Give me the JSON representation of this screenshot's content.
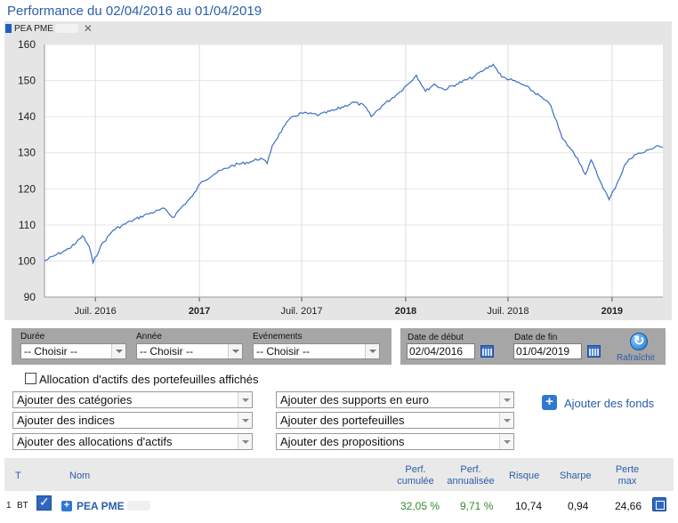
{
  "title": "Performance du 02/04/2016 au 01/04/2019",
  "series_tab": {
    "name": "PEA PME",
    "swatch_color": "#1f5fbf",
    "close_icon": "close-icon"
  },
  "chart_data": {
    "type": "line",
    "ylim": [
      90,
      160
    ],
    "yticks": [
      "90",
      "100",
      "110",
      "120",
      "130",
      "140",
      "150",
      "160"
    ],
    "xticks": [
      {
        "label": "Juil. 2016",
        "bold": false
      },
      {
        "label": "2017",
        "bold": true
      },
      {
        "label": "Juil. 2017",
        "bold": false
      },
      {
        "label": "2018",
        "bold": true
      },
      {
        "label": "Juil. 2018",
        "bold": false
      },
      {
        "label": "2019",
        "bold": true
      }
    ],
    "x_start": "2016-04-02",
    "x_end": "2019-04-01",
    "series": [
      {
        "color": "#3b6fc4",
        "points": [
          [
            "2016-04-02",
            100.0
          ],
          [
            "2016-04-20",
            101.5
          ],
          [
            "2016-05-10",
            103.0
          ],
          [
            "2016-05-25",
            104.5
          ],
          [
            "2016-06-08",
            107.0
          ],
          [
            "2016-06-20",
            104.0
          ],
          [
            "2016-06-27",
            99.5
          ],
          [
            "2016-07-10",
            104.0
          ],
          [
            "2016-08-01",
            108.5
          ],
          [
            "2016-09-01",
            111.0
          ],
          [
            "2016-10-01",
            113.0
          ],
          [
            "2016-11-01",
            114.5
          ],
          [
            "2016-11-15",
            112.0
          ],
          [
            "2016-12-01",
            115.0
          ],
          [
            "2016-12-20",
            118.0
          ],
          [
            "2017-01-05",
            122.0
          ],
          [
            "2017-02-01",
            124.5
          ],
          [
            "2017-03-01",
            126.5
          ],
          [
            "2017-04-01",
            127.5
          ],
          [
            "2017-04-20",
            128.5
          ],
          [
            "2017-05-01",
            127.0
          ],
          [
            "2017-05-10",
            132.0
          ],
          [
            "2017-06-01",
            137.5
          ],
          [
            "2017-06-15",
            140.0
          ],
          [
            "2017-07-01",
            141.0
          ],
          [
            "2017-08-01",
            140.5
          ],
          [
            "2017-09-01",
            142.0
          ],
          [
            "2017-10-01",
            144.0
          ],
          [
            "2017-10-20",
            143.0
          ],
          [
            "2017-11-01",
            140.0
          ],
          [
            "2017-11-20",
            143.0
          ],
          [
            "2017-12-15",
            146.0
          ],
          [
            "2018-01-05",
            149.0
          ],
          [
            "2018-01-20",
            151.5
          ],
          [
            "2018-02-05",
            147.0
          ],
          [
            "2018-02-20",
            149.0
          ],
          [
            "2018-03-10",
            147.5
          ],
          [
            "2018-04-01",
            149.0
          ],
          [
            "2018-05-01",
            151.0
          ],
          [
            "2018-05-20",
            153.0
          ],
          [
            "2018-06-05",
            154.5
          ],
          [
            "2018-06-20",
            151.0
          ],
          [
            "2018-07-10",
            150.0
          ],
          [
            "2018-08-01",
            148.5
          ],
          [
            "2018-09-01",
            145.0
          ],
          [
            "2018-09-15",
            143.0
          ],
          [
            "2018-10-05",
            134.0
          ],
          [
            "2018-10-20",
            131.0
          ],
          [
            "2018-11-01",
            128.5
          ],
          [
            "2018-11-15",
            124.0
          ],
          [
            "2018-11-25",
            128.0
          ],
          [
            "2018-12-10",
            122.5
          ],
          [
            "2018-12-27",
            117.0
          ],
          [
            "2019-01-10",
            121.5
          ],
          [
            "2019-01-25",
            127.0
          ],
          [
            "2019-02-10",
            129.5
          ],
          [
            "2019-02-25",
            130.0
          ],
          [
            "2019-03-10",
            131.0
          ],
          [
            "2019-03-22",
            132.0
          ],
          [
            "2019-04-01",
            131.5
          ]
        ]
      }
    ]
  },
  "filters": {
    "duree": {
      "label": "Durée",
      "value": "-- Choisir --"
    },
    "annee": {
      "label": "Année",
      "value": "-- Choisir --"
    },
    "evenements": {
      "label": "Evénements",
      "value": "-- Choisir --"
    },
    "date_debut": {
      "label": "Date de début",
      "value": "02/04/2016"
    },
    "date_fin": {
      "label": "Date de fin",
      "value": "01/04/2019"
    },
    "refresh_label": "Rafraîchir"
  },
  "allocation_checkbox": {
    "label": "Allocation d'actifs des portefeuilles affichés",
    "checked": false
  },
  "add_selects": {
    "categories": "Ajouter des catégories",
    "supports_euro": "Ajouter des supports en euro",
    "indices": "Ajouter des indices",
    "portefeuilles": "Ajouter des portefeuilles",
    "allocations": "Ajouter des allocations d'actifs",
    "propositions": "Ajouter des propositions"
  },
  "add_funds_label": "Ajouter des fonds",
  "table": {
    "headers": {
      "t": "T",
      "nom": "Nom",
      "perf_cumulee": [
        "Perf.",
        "cumulée"
      ],
      "perf_annualisee": [
        "Perf.",
        "annualisée"
      ],
      "risque": "Risque",
      "sharpe": "Sharpe",
      "perte_max": [
        "Perte",
        "max"
      ]
    },
    "rows": [
      {
        "index": "1",
        "type": "BT",
        "name": "PEA PME",
        "perf_cumulee": "32,05 %",
        "perf_annualisee": "9,71 %",
        "risque": "10,74",
        "sharpe": "0,94",
        "perte_max": "24,66"
      }
    ],
    "positive_color": "#2e8b2e"
  }
}
